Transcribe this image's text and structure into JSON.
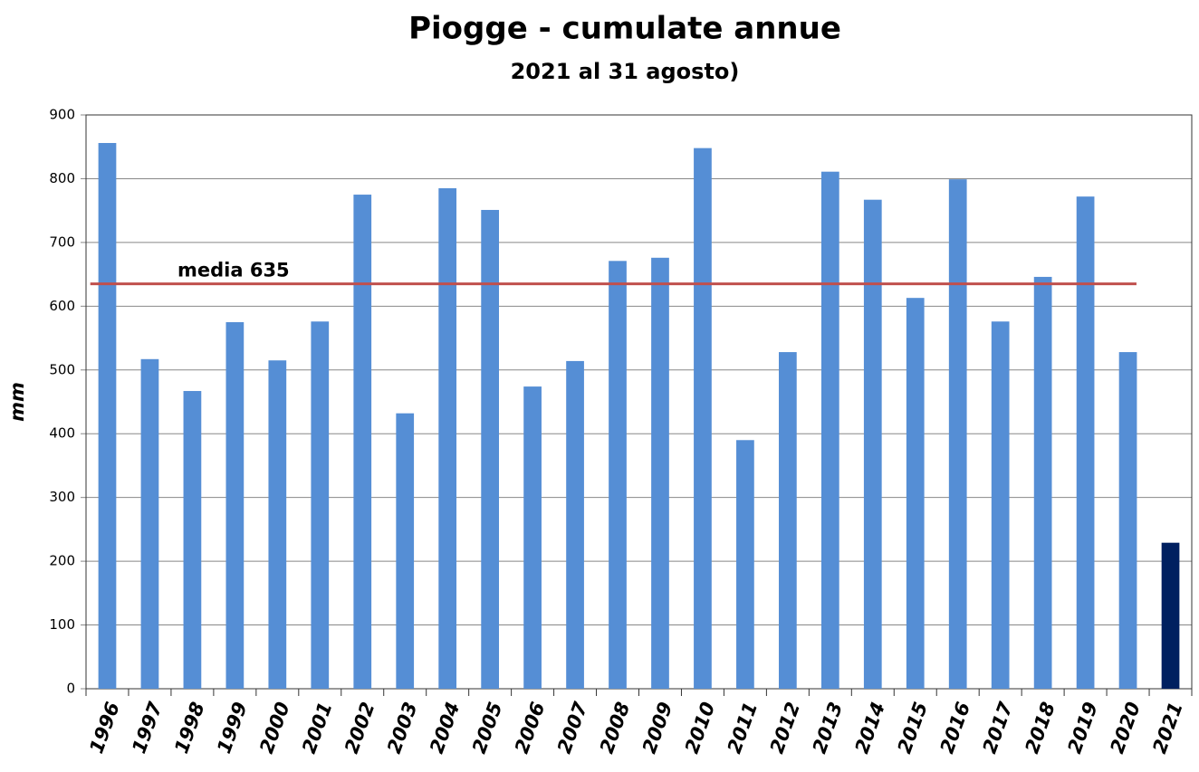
{
  "chart_data": {
    "type": "bar",
    "title": "Piogge - cumulate annue",
    "subtitle": "2021 al 31 agosto)",
    "y_label": "mm",
    "categories": [
      "1996",
      "1997",
      "1998",
      "1999",
      "2000",
      "2001",
      "2002",
      "2003",
      "2004",
      "2005",
      "2006",
      "2007",
      "2008",
      "2009",
      "2010",
      "2011",
      "2012",
      "2013",
      "2014",
      "2015",
      "2016",
      "2017",
      "2018",
      "2019",
      "2020",
      "2021"
    ],
    "values": [
      856,
      517,
      467,
      575,
      515,
      576,
      775,
      432,
      785,
      751,
      474,
      514,
      671,
      676,
      848,
      390,
      528,
      811,
      767,
      613,
      799,
      576,
      646,
      772,
      528,
      229
    ],
    "colors": [
      "#558ed5",
      "#558ed5",
      "#558ed5",
      "#558ed5",
      "#558ed5",
      "#558ed5",
      "#558ed5",
      "#558ed5",
      "#558ed5",
      "#558ed5",
      "#558ed5",
      "#558ed5",
      "#558ed5",
      "#558ed5",
      "#558ed5",
      "#558ed5",
      "#558ed5",
      "#558ed5",
      "#558ed5",
      "#558ed5",
      "#558ed5",
      "#558ed5",
      "#558ed5",
      "#558ed5",
      "#558ed5",
      "#002060"
    ],
    "ylim": [
      0,
      900
    ],
    "yticks": [
      0,
      100,
      200,
      300,
      400,
      500,
      600,
      700,
      800,
      900
    ],
    "grid": true,
    "reference_line": {
      "label": "media 635",
      "value": 635,
      "color": "#c0504d",
      "label_color": "#a0522d"
    }
  }
}
